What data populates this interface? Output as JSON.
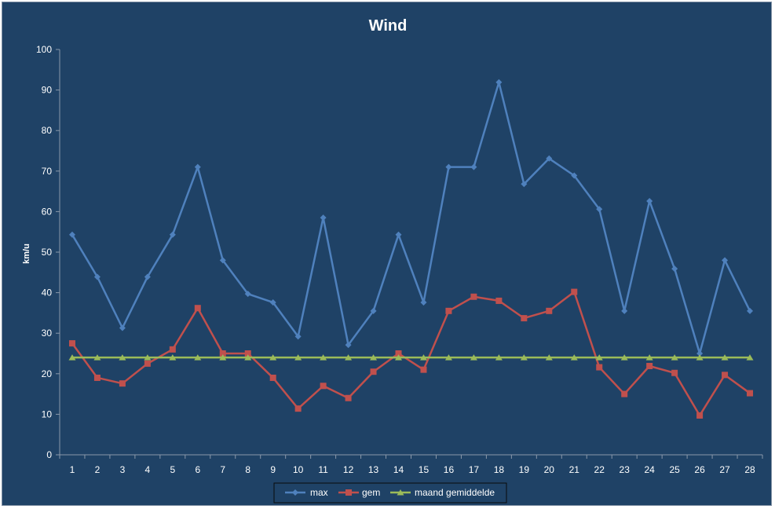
{
  "chart_data": {
    "type": "line",
    "title": "Wind",
    "xlabel": "",
    "ylabel": "km/u",
    "ylim": [
      0,
      100
    ],
    "yticks": [
      0,
      10,
      20,
      30,
      40,
      50,
      60,
      70,
      80,
      90,
      100
    ],
    "grid": false,
    "legend_position": "bottom",
    "categories": [
      "1",
      "2",
      "3",
      "4",
      "5",
      "6",
      "7",
      "8",
      "9",
      "10",
      "11",
      "12",
      "13",
      "14",
      "15",
      "16",
      "17",
      "18",
      "19",
      "20",
      "21",
      "22",
      "23",
      "24",
      "25",
      "26",
      "27",
      "28"
    ],
    "series": [
      {
        "name": "max",
        "color": "#4f81bd",
        "marker": "diamond",
        "values": [
          54.3,
          43.9,
          31.3,
          43.9,
          54.3,
          71.0,
          48.0,
          39.7,
          37.6,
          29.2,
          58.5,
          27.1,
          35.5,
          54.3,
          37.6,
          71.0,
          71.0,
          91.9,
          66.8,
          73.1,
          68.9,
          60.6,
          35.5,
          62.6,
          45.9,
          25.0,
          48.0,
          35.5
        ]
      },
      {
        "name": "gem",
        "color": "#c0504d",
        "marker": "square",
        "values": [
          27.5,
          19.0,
          17.6,
          22.5,
          26.0,
          36.2,
          25.0,
          25.0,
          19.0,
          11.4,
          17.0,
          14.0,
          20.5,
          25.0,
          21.0,
          35.5,
          39.0,
          38.0,
          33.7,
          35.5,
          40.2,
          21.6,
          15.0,
          21.9,
          20.2,
          9.7,
          19.7,
          15.2
        ]
      },
      {
        "name": "maand gemiddelde",
        "color": "#9bbb59",
        "marker": "triangle",
        "values": [
          24,
          24,
          24,
          24,
          24,
          24,
          24,
          24,
          24,
          24,
          24,
          24,
          24,
          24,
          24,
          24,
          24,
          24,
          24,
          24,
          24,
          24,
          24,
          24,
          24,
          24,
          24,
          24
        ]
      }
    ]
  }
}
